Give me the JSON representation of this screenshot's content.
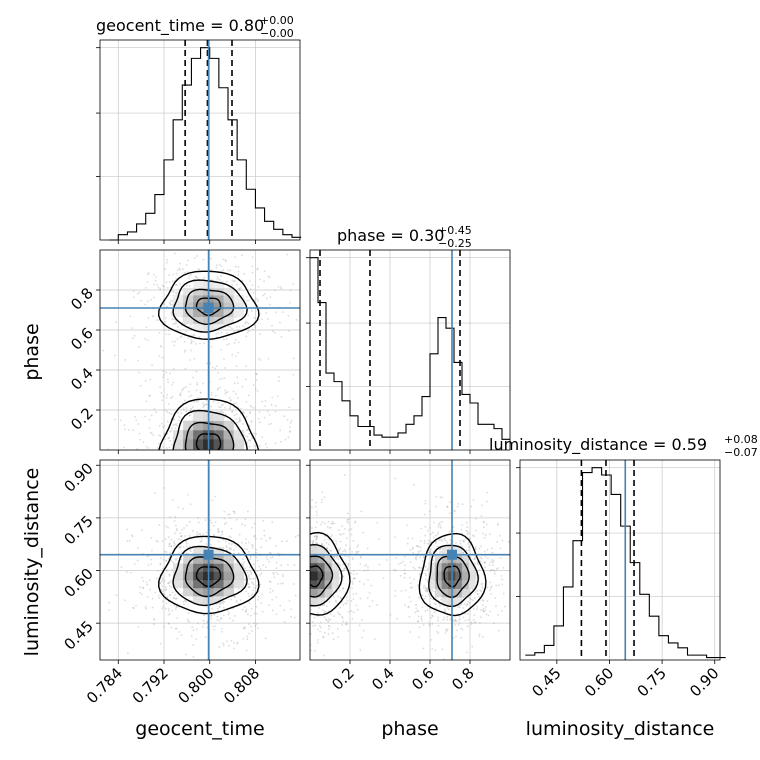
{
  "chart_data": {
    "type": "corner",
    "parameters": [
      "geocent_time",
      "phase",
      "luminosity_distance"
    ],
    "titles": [
      {
        "name": "geocent_time",
        "median": "0.80",
        "plus": "+0.00",
        "minus": "−0.00"
      },
      {
        "name": "phase",
        "median": "0.30",
        "plus": "+0.45",
        "minus": "−0.25"
      },
      {
        "name": "luminosity_distance",
        "median": "0.59",
        "plus": "+0.08",
        "minus": "−0.07"
      }
    ],
    "ranges": {
      "geocent_time": [
        0.7808,
        0.8158
      ],
      "phase": [
        0.0,
        1.0
      ],
      "luminosity_distance": [
        0.345,
        0.915
      ]
    },
    "ticks": {
      "geocent_time": [
        "0.784",
        "0.792",
        "0.800",
        "0.808"
      ],
      "phase": [
        "0.2",
        "0.4",
        "0.6",
        "0.8"
      ],
      "luminosity_distance": [
        "0.45",
        "0.60",
        "0.75",
        "0.90"
      ]
    },
    "tick_values": {
      "geocent_time": [
        0.784,
        0.792,
        0.8,
        0.808
      ],
      "phase": [
        0.2,
        0.4,
        0.6,
        0.8
      ],
      "luminosity_distance": [
        0.45,
        0.6,
        0.75,
        0.9
      ]
    },
    "truths": {
      "geocent_time": 0.7998,
      "phase": 0.71,
      "luminosity_distance": 0.645
    },
    "quantiles": {
      "geocent_time": [
        0.7957,
        0.7996,
        0.8039
      ],
      "phase": [
        0.05,
        0.3,
        0.75
      ],
      "luminosity_distance": [
        0.52,
        0.59,
        0.67
      ]
    },
    "histograms": {
      "geocent_time": {
        "edges_start": 0.7824,
        "bin_width": 0.0016,
        "counts": [
          0,
          2,
          3,
          6,
          10,
          17,
          30,
          45,
          58,
          68,
          72,
          68,
          57,
          45,
          30,
          19,
          12,
          7,
          4,
          2,
          1
        ]
      },
      "phase": {
        "edges_start": 0.0,
        "bin_width": 0.04,
        "counts": [
          0.9,
          0.69,
          0.36,
          0.32,
          0.23,
          0.16,
          0.11,
          0.11,
          0.07,
          0.06,
          0.06,
          0.08,
          0.12,
          0.16,
          0.25,
          0.45,
          0.62,
          0.57,
          0.41,
          0.26,
          0.22,
          0.12,
          0.12,
          0.1,
          0.05
        ]
      },
      "luminosity_distance": {
        "edges_start": 0.36,
        "bin_width": 0.0272,
        "counts": [
          0.02,
          0.03,
          0.06,
          0.14,
          0.3,
          0.49,
          0.77,
          0.79,
          0.76,
          0.68,
          0.55,
          0.4,
          0.27,
          0.18,
          0.1,
          0.07,
          0.05,
          0.02,
          0.02,
          0.01,
          0.01
        ]
      }
    },
    "density_blobs": {
      "phase_vs_geocent_time": [
        {
          "cx": 0.7998,
          "cy": 0.72,
          "sx": 0.0042,
          "sy": 0.085,
          "w": 0.6
        },
        {
          "cx": 0.7998,
          "cy": 0.03,
          "sx": 0.0042,
          "sy": 0.11,
          "w": 1.0
        }
      ],
      "luminosity_distance_vs_geocent_time": [
        {
          "cx": 0.7998,
          "cy": 0.585,
          "sx": 0.0042,
          "sy": 0.055,
          "w": 1.0
        }
      ],
      "luminosity_distance_vs_phase": [
        {
          "cx": 0.02,
          "cy": 0.585,
          "sx": 0.085,
          "sy": 0.058,
          "w": 1.0
        },
        {
          "cx": 0.71,
          "cy": 0.585,
          "sx": 0.08,
          "sy": 0.058,
          "w": 0.85
        }
      ]
    },
    "grid": true,
    "truth_color": "#4682b4"
  }
}
